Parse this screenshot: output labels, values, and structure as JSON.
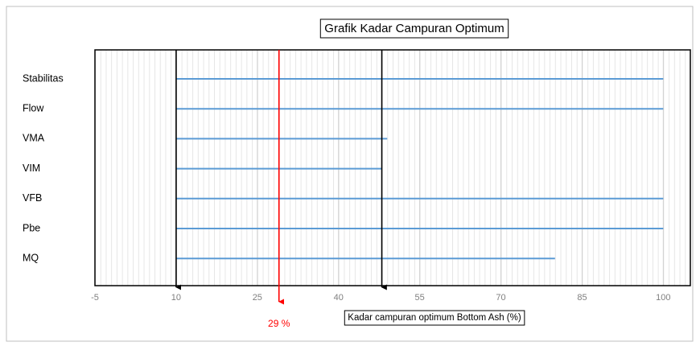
{
  "chart_data": {
    "type": "range_bar",
    "title": "Grafik Kadar Campuran Optimum",
    "x_label": "Kadar campuran optimum Bottom Ash (%)",
    "categories": [
      "Stabilitas",
      "Flow",
      "VMA",
      "VIM",
      "VFB",
      "Pbe",
      "MQ"
    ],
    "ranges": [
      [
        10,
        100
      ],
      [
        10,
        100
      ],
      [
        10,
        49
      ],
      [
        10,
        48
      ],
      [
        10,
        100
      ],
      [
        10,
        100
      ],
      [
        10,
        80
      ]
    ],
    "color": "#5b9bd5",
    "xlim": [
      -5,
      105
    ],
    "xticks": [
      -5,
      10,
      25,
      40,
      55,
      70,
      85,
      100
    ],
    "grid": true,
    "markers": [
      {
        "value": 10,
        "color": "#000000"
      },
      {
        "value": 48,
        "color": "#000000"
      },
      {
        "value": 29,
        "color": "#ff0000",
        "label": "29 %"
      }
    ]
  }
}
